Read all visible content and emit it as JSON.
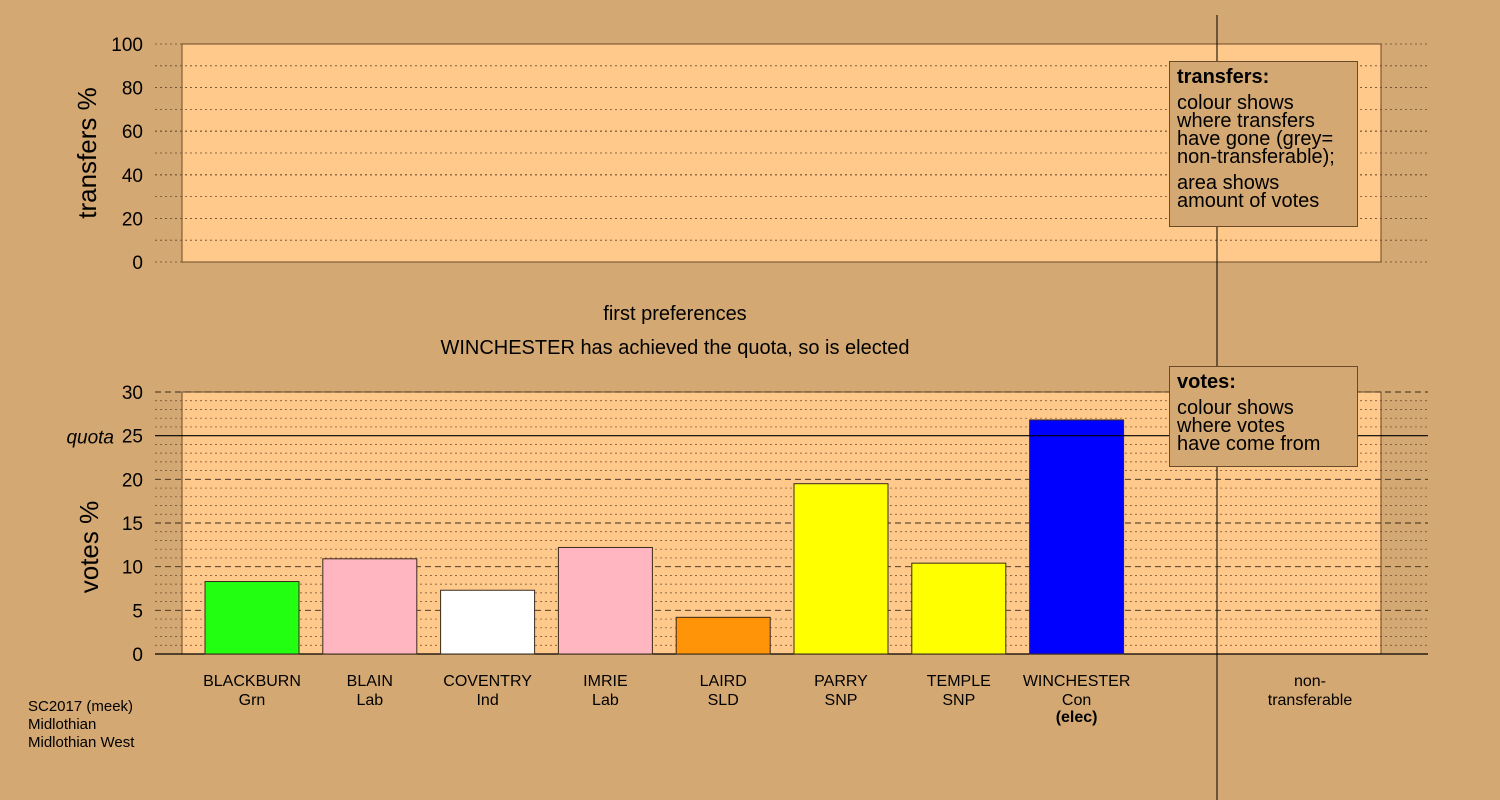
{
  "chart_data": [
    {
      "type": "bar",
      "panel": "transfers",
      "ylabel": "transfers %",
      "ylim": [
        0,
        100
      ],
      "yticks": [
        0,
        20,
        40,
        60,
        80,
        100
      ],
      "values": []
    },
    {
      "type": "bar",
      "panel": "votes",
      "title": "first preferences",
      "subtitle": "WINCHESTER has achieved the quota, so is elected",
      "ylabel": "votes %",
      "ylim": [
        0,
        30
      ],
      "yticks": [
        0,
        5,
        10,
        15,
        20,
        25,
        30
      ],
      "quota": {
        "label": "quota",
        "value": 25
      },
      "categories": [
        "BLACKBURN",
        "BLAIN",
        "COVENTRY",
        "IMRIE",
        "LAIRD",
        "PARRY",
        "TEMPLE",
        "WINCHESTER"
      ],
      "parties": [
        "Grn",
        "Lab",
        "Ind",
        "Lab",
        "SLD",
        "SNP",
        "SNP",
        "Con"
      ],
      "notes": [
        "",
        "",
        "",
        "",
        "",
        "",
        "",
        "(elec)"
      ],
      "values": [
        8.3,
        10.9,
        7.3,
        12.2,
        4.2,
        19.5,
        10.4,
        26.8
      ],
      "colors": [
        "#22ff11",
        "#ffb6c1",
        "#ffffff",
        "#ffb6c1",
        "#ff9408",
        "#ffff00",
        "#ffff00",
        "#0000ff"
      ],
      "non_transferable_label": [
        "non-",
        "transferable"
      ]
    }
  ],
  "legend_transfers": {
    "title": "transfers:",
    "para1": [
      "colour shows",
      "where transfers",
      "have gone (grey=",
      "non-transferable);"
    ],
    "para2": [
      "area shows",
      "amount of votes"
    ]
  },
  "legend_votes": {
    "title": "votes:",
    "para1": [
      "colour shows",
      "where votes",
      "have come from"
    ]
  },
  "footer": [
    "SC2017 (meek)",
    "Midlothian",
    "Midlothian West"
  ],
  "colors": {
    "background": "#d4a872",
    "plot_fill": "#ffc98c"
  }
}
